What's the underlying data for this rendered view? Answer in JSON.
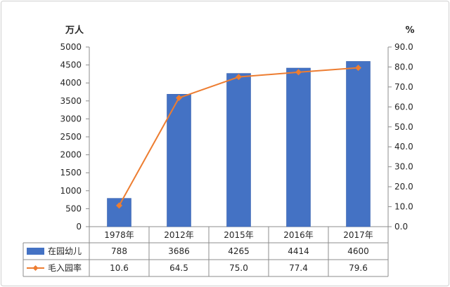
{
  "chart_data": {
    "type": "bar",
    "categories": [
      "1978年",
      "2012年",
      "2015年",
      "2016年",
      "2017年"
    ],
    "series": [
      {
        "name": "在园幼儿",
        "type": "bar",
        "axis": "left",
        "color": "#4472C4",
        "values": [
          788,
          3686,
          4265,
          4414,
          4600
        ],
        "labels": [
          "788",
          "3686",
          "4265",
          "4414",
          "4600"
        ]
      },
      {
        "name": "毛入园率",
        "type": "line",
        "axis": "right",
        "color": "#ED7D31",
        "marker": "diamond",
        "values": [
          10.6,
          64.5,
          75.0,
          77.4,
          79.6
        ],
        "labels": [
          "10.6",
          "64.5",
          "75.0",
          "77.4",
          "79.6"
        ]
      }
    ],
    "ylabel": "万人",
    "y2label": "%",
    "ylim": [
      0,
      5000
    ],
    "y2lim": [
      0,
      90
    ],
    "yticks": [
      "0",
      "500",
      "1000",
      "1500",
      "2000",
      "2500",
      "3000",
      "3500",
      "4000",
      "4500",
      "5000"
    ],
    "y2ticks": [
      "0.0",
      "10.0",
      "20.0",
      "30.0",
      "40.0",
      "50.0",
      "60.0",
      "70.0",
      "80.0",
      "90.0"
    ],
    "grid": false,
    "legend": "data-table",
    "axis_color": "#8c8c8c"
  }
}
